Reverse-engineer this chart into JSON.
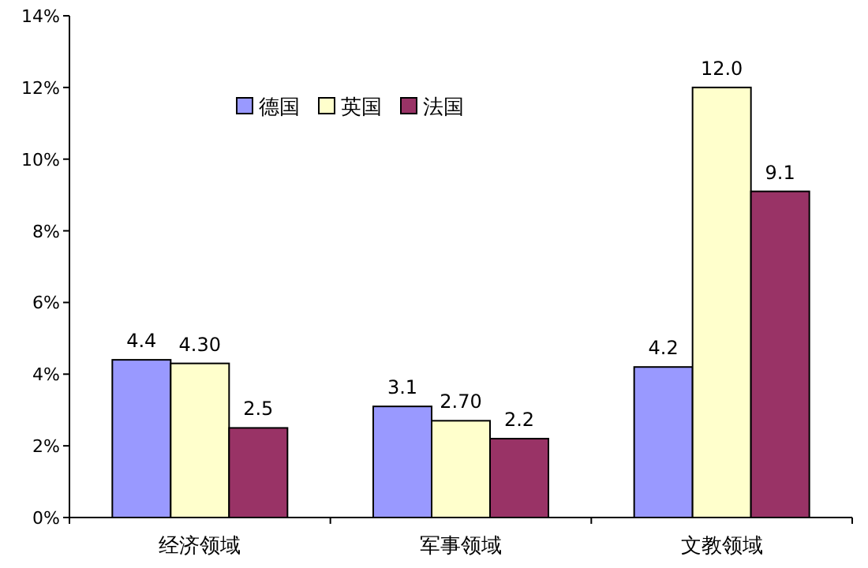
{
  "chart_data": {
    "type": "bar",
    "categories": [
      "经济领域",
      "军事领域",
      "文教领域"
    ],
    "series": [
      {
        "name": "德国",
        "color": "#9999ff",
        "values": [
          4.4,
          3.1,
          4.2
        ],
        "value_labels": [
          "4.4",
          "3.1",
          "4.2"
        ]
      },
      {
        "name": "英国",
        "color": "#ffffcc",
        "values": [
          4.3,
          2.7,
          12.0
        ],
        "value_labels": [
          "4.30",
          "2.70",
          "12.0"
        ]
      },
      {
        "name": "法国",
        "color": "#993366",
        "values": [
          2.5,
          2.2,
          9.1
        ],
        "value_labels": [
          "2.5",
          "2.2",
          "9.1"
        ]
      }
    ],
    "ylim": [
      0,
      14
    ],
    "yticks": [
      {
        "value": 0,
        "label": "0%"
      },
      {
        "value": 2,
        "label": "2%"
      },
      {
        "value": 4,
        "label": "4%"
      },
      {
        "value": 6,
        "label": "6%"
      },
      {
        "value": 8,
        "label": "8%"
      },
      {
        "value": 10,
        "label": "10%"
      },
      {
        "value": 12,
        "label": "12%"
      },
      {
        "value": 14,
        "label": "14%"
      }
    ],
    "legend": "top"
  }
}
